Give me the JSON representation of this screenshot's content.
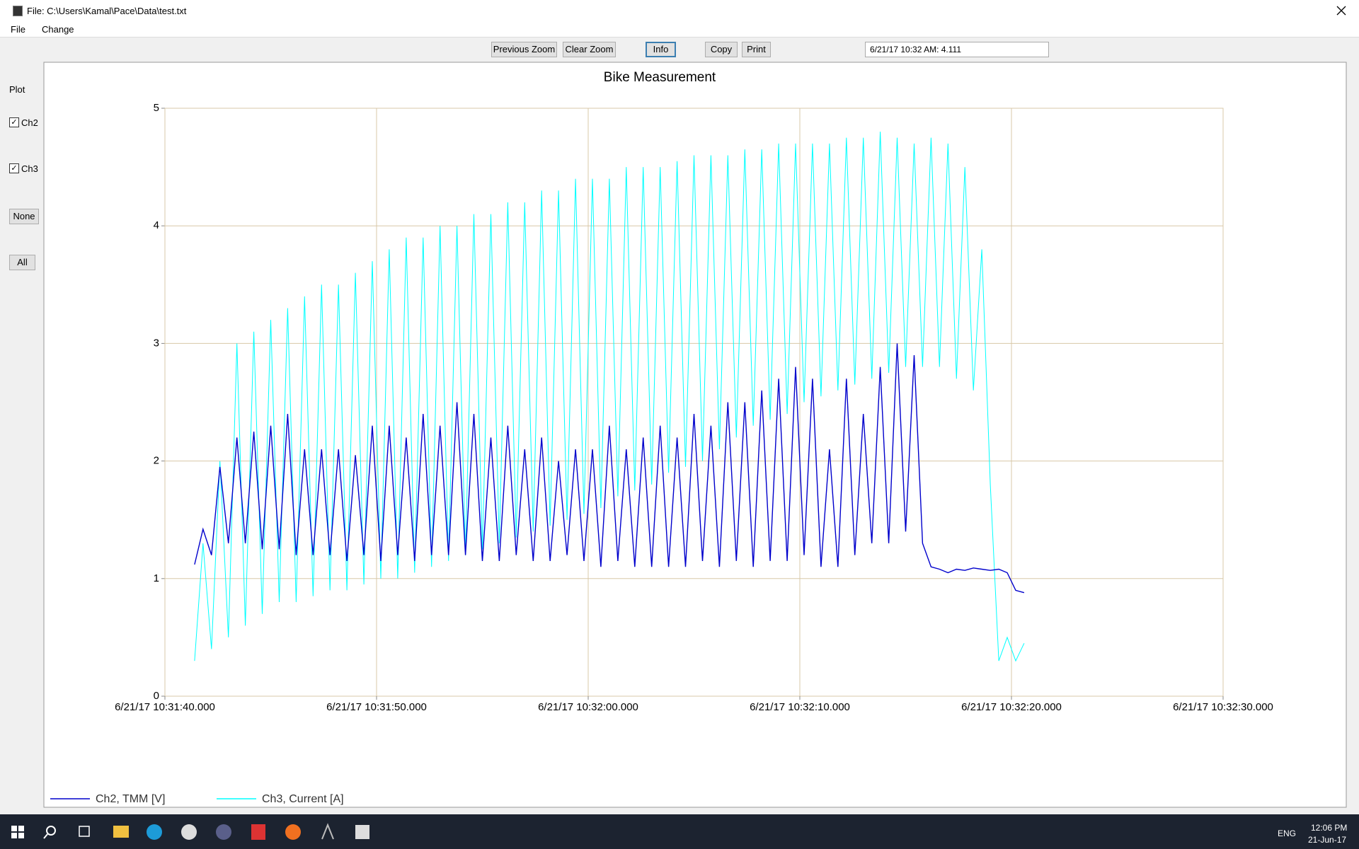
{
  "window": {
    "title": "File: C:\\Users\\Kamal\\Pace\\Data\\test.txt"
  },
  "menu": [
    "File",
    "Change"
  ],
  "toolbar": {
    "buttons": [
      "Previous Zoom",
      "Clear Zoom",
      "Info",
      "Copy",
      "Print"
    ],
    "info_field": "6/21/17 10:32 AM: 4.111"
  },
  "sidebar": {
    "heading": "Plot",
    "checkboxes": [
      "Ch2",
      "Ch3"
    ],
    "buttons": [
      "None",
      "All"
    ]
  },
  "taskbar": {
    "language": "ENG",
    "time": "12:06 PM",
    "date": "21-Jun-17"
  },
  "chart_data": {
    "type": "line",
    "title": "Bike Measurement",
    "x": [
      "6/21/17 10:31:41.400",
      "6/21/17 10:31:41.800",
      "6/21/17 10:31:42.200",
      "6/21/17 10:31:42.600",
      "6/21/17 10:31:43.000",
      "6/21/17 10:31:43.400",
      "6/21/17 10:31:43.800",
      "6/21/17 10:31:44.200",
      "6/21/17 10:31:44.600",
      "6/21/17 10:31:45.000",
      "6/21/17 10:31:45.400",
      "6/21/17 10:31:45.800",
      "6/21/17 10:31:46.200",
      "6/21/17 10:31:46.600",
      "6/21/17 10:31:47.000",
      "6/21/17 10:31:47.400",
      "6/21/17 10:31:47.800",
      "6/21/17 10:31:48.200",
      "6/21/17 10:31:48.600",
      "6/21/17 10:31:49.000",
      "6/21/17 10:31:49.400",
      "6/21/17 10:31:49.800",
      "6/21/17 10:31:50.200",
      "6/21/17 10:31:50.600",
      "6/21/17 10:31:51.000",
      "6/21/17 10:31:51.400",
      "6/21/17 10:31:51.800",
      "6/21/17 10:31:52.200",
      "6/21/17 10:31:52.600",
      "6/21/17 10:31:53.000",
      "6/21/17 10:31:53.400",
      "6/21/17 10:31:53.800",
      "6/21/17 10:31:54.200",
      "6/21/17 10:31:54.600",
      "6/21/17 10:31:55.000",
      "6/21/17 10:31:55.400",
      "6/21/17 10:31:55.800",
      "6/21/17 10:31:56.200",
      "6/21/17 10:31:56.600",
      "6/21/17 10:31:57.000",
      "6/21/17 10:31:57.400",
      "6/21/17 10:31:57.800",
      "6/21/17 10:31:58.200",
      "6/21/17 10:31:58.600",
      "6/21/17 10:31:59.000",
      "6/21/17 10:31:59.400",
      "6/21/17 10:31:59.800",
      "6/21/17 10:32:00.200",
      "6/21/17 10:32:00.600",
      "6/21/17 10:32:01.000",
      "6/21/17 10:32:01.400",
      "6/21/17 10:32:01.800",
      "6/21/17 10:32:02.200",
      "6/21/17 10:32:02.600",
      "6/21/17 10:32:03.000",
      "6/21/17 10:32:03.400",
      "6/21/17 10:32:03.800",
      "6/21/17 10:32:04.200",
      "6/21/17 10:32:04.600",
      "6/21/17 10:32:05.000",
      "6/21/17 10:32:05.400",
      "6/21/17 10:32:05.800",
      "6/21/17 10:32:06.200",
      "6/21/17 10:32:06.600",
      "6/21/17 10:32:07.000",
      "6/21/17 10:32:07.400",
      "6/21/17 10:32:07.800",
      "6/21/17 10:32:08.200",
      "6/21/17 10:32:08.600",
      "6/21/17 10:32:09.000",
      "6/21/17 10:32:09.400",
      "6/21/17 10:32:09.800",
      "6/21/17 10:32:10.200",
      "6/21/17 10:32:10.600",
      "6/21/17 10:32:11.000",
      "6/21/17 10:32:11.400",
      "6/21/17 10:32:11.800",
      "6/21/17 10:32:12.200",
      "6/21/17 10:32:12.600",
      "6/21/17 10:32:13.000",
      "6/21/17 10:32:13.400",
      "6/21/17 10:32:13.800",
      "6/21/17 10:32:14.200",
      "6/21/17 10:32:14.600",
      "6/21/17 10:32:15.000",
      "6/21/17 10:32:15.400",
      "6/21/17 10:32:15.800",
      "6/21/17 10:32:16.200",
      "6/21/17 10:32:16.600",
      "6/21/17 10:32:17.000",
      "6/21/17 10:32:17.400",
      "6/21/17 10:32:17.800",
      "6/21/17 10:32:18.200",
      "6/21/17 10:32:18.600",
      "6/21/17 10:32:19.000",
      "6/21/17 10:32:19.400",
      "6/21/17 10:32:19.800",
      "6/21/17 10:32:20.200",
      "6/21/17 10:32:20.600"
    ],
    "series": [
      {
        "name": "Ch2, TMM [V]",
        "color": "#0000cc",
        "values": [
          1.12,
          1.42,
          1.2,
          1.95,
          1.3,
          2.2,
          1.3,
          2.25,
          1.25,
          2.3,
          1.25,
          2.4,
          1.2,
          2.1,
          1.2,
          2.1,
          1.2,
          2.1,
          1.15,
          2.05,
          1.2,
          2.3,
          1.15,
          2.3,
          1.2,
          2.2,
          1.15,
          2.4,
          1.2,
          2.3,
          1.2,
          2.5,
          1.2,
          2.4,
          1.15,
          2.2,
          1.15,
          2.3,
          1.2,
          2.1,
          1.15,
          2.2,
          1.15,
          2.0,
          1.2,
          2.1,
          1.15,
          2.1,
          1.1,
          2.3,
          1.15,
          2.1,
          1.1,
          2.2,
          1.1,
          2.3,
          1.1,
          2.2,
          1.1,
          2.4,
          1.15,
          2.3,
          1.1,
          2.5,
          1.15,
          2.5,
          1.1,
          2.6,
          1.15,
          2.7,
          1.15,
          2.8,
          1.2,
          2.7,
          1.1,
          2.1,
          1.1,
          2.7,
          1.2,
          2.4,
          1.3,
          2.8,
          1.3,
          3.0,
          1.4,
          2.9,
          1.3,
          1.1,
          1.08,
          1.05,
          1.08,
          1.07,
          1.09,
          1.08,
          1.07,
          1.08,
          1.05,
          0.9,
          0.88
        ]
      },
      {
        "name": "Ch3, Current [A]",
        "color": "#00ffff",
        "values": [
          0.3,
          1.3,
          0.4,
          2.0,
          0.5,
          3.0,
          0.6,
          3.1,
          0.7,
          3.2,
          0.8,
          3.3,
          0.8,
          3.4,
          0.85,
          3.5,
          0.9,
          3.5,
          0.9,
          3.6,
          0.95,
          3.7,
          1.0,
          3.8,
          1.0,
          3.9,
          1.05,
          3.9,
          1.1,
          4.0,
          1.15,
          4.0,
          1.2,
          4.1,
          1.25,
          4.1,
          1.3,
          4.2,
          1.35,
          4.2,
          1.4,
          4.3,
          1.45,
          4.3,
          1.5,
          4.4,
          1.55,
          4.4,
          1.6,
          4.4,
          1.7,
          4.5,
          1.75,
          4.5,
          1.8,
          4.5,
          1.9,
          4.55,
          1.95,
          4.6,
          2.0,
          4.6,
          2.1,
          4.6,
          2.2,
          4.65,
          2.3,
          4.65,
          2.35,
          4.7,
          2.4,
          4.7,
          2.5,
          4.7,
          2.55,
          4.7,
          2.6,
          4.75,
          2.65,
          4.75,
          2.7,
          4.8,
          2.75,
          4.75,
          2.8,
          4.7,
          2.8,
          4.75,
          2.8,
          4.7,
          2.7,
          4.5,
          2.6,
          3.8,
          1.8,
          0.3,
          0.5,
          0.3,
          0.45
        ]
      }
    ],
    "xlim": [
      "6/21/17 10:31:40.000",
      "6/21/17 10:32:30.000"
    ],
    "xticks": [
      "6/21/17 10:31:40.000",
      "6/21/17 10:31:50.000",
      "6/21/17 10:32:00.000",
      "6/21/17 10:32:10.000",
      "6/21/17 10:32:20.000",
      "6/21/17 10:32:30.000"
    ],
    "ylim": [
      0,
      5
    ],
    "yticks": [
      0,
      1,
      2,
      3,
      4,
      5
    ],
    "grid": true
  }
}
